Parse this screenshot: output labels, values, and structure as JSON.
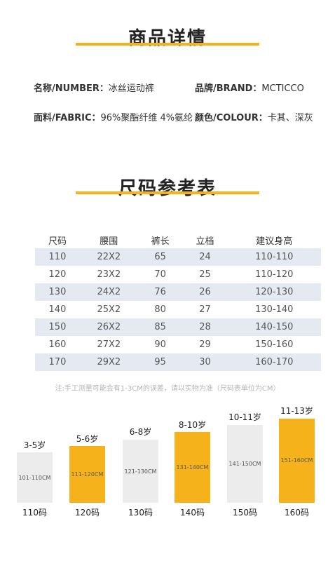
{
  "details": {
    "title": "商品详情",
    "name_label": "名称/NUMBER：",
    "name_value": "冰丝运动裤",
    "brand_label": "品牌/BRAND：",
    "brand_value": "MCTICCO",
    "fabric_label": "面料/FABRIC：",
    "fabric_value": "96%聚酯纤维 4%氨纶",
    "color_label": "颜色/COLOUR：",
    "color_value": "卡其、深灰"
  },
  "size_chart": {
    "title": "尺码参考表",
    "headers": [
      "尺码",
      "腰围",
      "裤长",
      "立档",
      "建议身高"
    ],
    "rows": [
      [
        "110",
        "22X2",
        "65",
        "24",
        "110-110"
      ],
      [
        "120",
        "23X2",
        "70",
        "25",
        "110-120"
      ],
      [
        "130",
        "24X2",
        "76",
        "26",
        "120-130"
      ],
      [
        "140",
        "25X2",
        "80",
        "27",
        "130-140"
      ],
      [
        "150",
        "26X2",
        "85",
        "28",
        "140-150"
      ],
      [
        "160",
        "27X2",
        "90",
        "29",
        "150-160"
      ],
      [
        "170",
        "29X2",
        "95",
        "30",
        "160-170"
      ]
    ],
    "note": "注:手工测量可能会有1-3CM的误差，请以实物为准（尺码表单位为CM）"
  },
  "age_guide": [
    {
      "age": "3-5岁",
      "range": "101-110CM",
      "code": "110码",
      "color": "gray"
    },
    {
      "age": "5-6岁",
      "range": "111-120CM",
      "code": "120码",
      "color": "yellow"
    },
    {
      "age": "6-8岁",
      "range": "121-130CM",
      "code": "130码",
      "color": "gray"
    },
    {
      "age": "8-10岁",
      "range": "131-140CM",
      "code": "140码",
      "color": "yellow"
    },
    {
      "age": "10-11岁",
      "range": "141-150CM",
      "code": "150码",
      "color": "gray"
    },
    {
      "age": "11-13岁",
      "range": "151-160CM",
      "code": "160码",
      "color": "yellow"
    }
  ],
  "colors": {
    "accent": "#f5b21b",
    "row_shade": "#e5eaf2",
    "bar_gray": "#ececec"
  }
}
